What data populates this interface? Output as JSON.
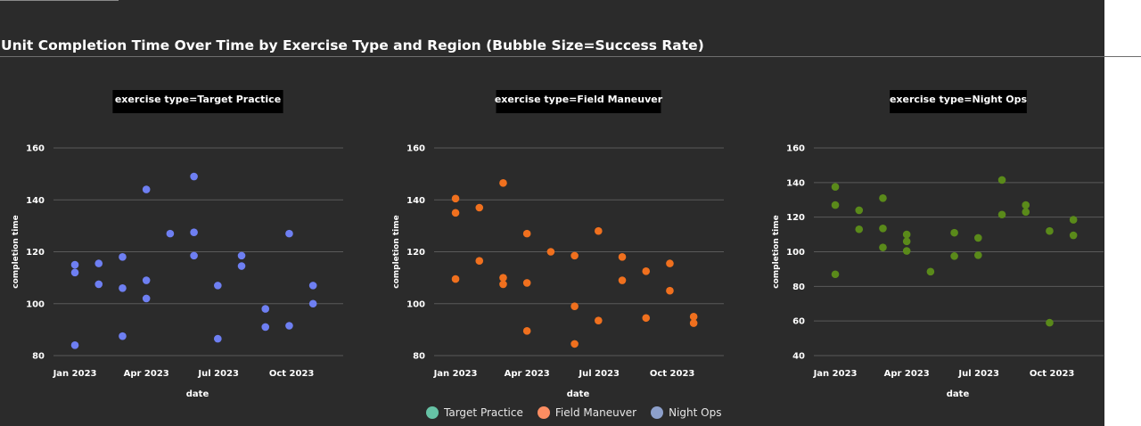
{
  "page": {
    "title": "Unit Completion Time Over Time by Exercise Type and Region (Bubble Size=Success Rate)"
  },
  "legend": [
    {
      "label": "Target Practice",
      "color": "#66c2a5"
    },
    {
      "label": "Field Maneuver",
      "color": "#fc8d62"
    },
    {
      "label": "Night Ops",
      "color": "#8da0cb"
    }
  ],
  "chart_data": [
    {
      "type": "scatter",
      "title": "exercise type=Target Practice",
      "xlabel": "date",
      "ylabel": "completion time",
      "xlim": [
        "2022-12-05",
        "2023-12-05"
      ],
      "ylim": [
        80,
        160
      ],
      "x_ticks": [
        {
          "date": "2023-01-01",
          "label": "Jan 2023"
        },
        {
          "date": "2023-04-01",
          "label": "Apr 2023"
        },
        {
          "date": "2023-07-01",
          "label": "Jul 2023"
        },
        {
          "date": "2023-10-01",
          "label": "Oct 2023"
        }
      ],
      "y_ticks": [
        80,
        100,
        120,
        140,
        160
      ],
      "grid": true,
      "color": "#6e7ff2",
      "points": [
        {
          "x": "2023-01-01",
          "y": 115
        },
        {
          "x": "2023-01-01",
          "y": 112
        },
        {
          "x": "2023-01-01",
          "y": 84
        },
        {
          "x": "2023-01-31",
          "y": 115.5
        },
        {
          "x": "2023-01-31",
          "y": 107.5
        },
        {
          "x": "2023-03-02",
          "y": 118
        },
        {
          "x": "2023-03-02",
          "y": 106
        },
        {
          "x": "2023-03-02",
          "y": 87.5
        },
        {
          "x": "2023-04-01",
          "y": 144
        },
        {
          "x": "2023-04-01",
          "y": 109
        },
        {
          "x": "2023-04-01",
          "y": 102
        },
        {
          "x": "2023-05-01",
          "y": 127
        },
        {
          "x": "2023-05-31",
          "y": 149
        },
        {
          "x": "2023-05-31",
          "y": 127.5
        },
        {
          "x": "2023-05-31",
          "y": 118.5
        },
        {
          "x": "2023-06-30",
          "y": 107
        },
        {
          "x": "2023-06-30",
          "y": 86.5
        },
        {
          "x": "2023-07-30",
          "y": 118.5
        },
        {
          "x": "2023-07-30",
          "y": 114.5
        },
        {
          "x": "2023-08-29",
          "y": 98
        },
        {
          "x": "2023-08-29",
          "y": 91
        },
        {
          "x": "2023-09-28",
          "y": 127
        },
        {
          "x": "2023-09-28",
          "y": 91.5
        },
        {
          "x": "2023-10-28",
          "y": 107
        },
        {
          "x": "2023-10-28",
          "y": 100
        }
      ]
    },
    {
      "type": "scatter",
      "title": "exercise type=Field Maneuver",
      "xlabel": "date",
      "ylabel": "completion time",
      "xlim": [
        "2022-12-05",
        "2023-12-05"
      ],
      "ylim": [
        80,
        160
      ],
      "x_ticks": [
        {
          "date": "2023-01-01",
          "label": "Jan 2023"
        },
        {
          "date": "2023-04-01",
          "label": "Apr 2023"
        },
        {
          "date": "2023-07-01",
          "label": "Jul 2023"
        },
        {
          "date": "2023-10-01",
          "label": "Oct 2023"
        }
      ],
      "y_ticks": [
        80,
        100,
        120,
        140,
        160
      ],
      "grid": true,
      "color": "#f0701e",
      "points": [
        {
          "x": "2023-01-01",
          "y": 140.5
        },
        {
          "x": "2023-01-01",
          "y": 135
        },
        {
          "x": "2023-01-01",
          "y": 109.5
        },
        {
          "x": "2023-01-31",
          "y": 137
        },
        {
          "x": "2023-01-31",
          "y": 116.5
        },
        {
          "x": "2023-03-02",
          "y": 146.5
        },
        {
          "x": "2023-03-02",
          "y": 110
        },
        {
          "x": "2023-03-02",
          "y": 107.5
        },
        {
          "x": "2023-04-01",
          "y": 127
        },
        {
          "x": "2023-04-01",
          "y": 108
        },
        {
          "x": "2023-04-01",
          "y": 89.5
        },
        {
          "x": "2023-05-01",
          "y": 120
        },
        {
          "x": "2023-05-31",
          "y": 118.5
        },
        {
          "x": "2023-05-31",
          "y": 99
        },
        {
          "x": "2023-05-31",
          "y": 84.5
        },
        {
          "x": "2023-06-30",
          "y": 128
        },
        {
          "x": "2023-06-30",
          "y": 93.5
        },
        {
          "x": "2023-07-30",
          "y": 118
        },
        {
          "x": "2023-07-30",
          "y": 109
        },
        {
          "x": "2023-08-29",
          "y": 112.5
        },
        {
          "x": "2023-08-29",
          "y": 94.5
        },
        {
          "x": "2023-09-28",
          "y": 115.5
        },
        {
          "x": "2023-09-28",
          "y": 105
        },
        {
          "x": "2023-10-28",
          "y": 95
        },
        {
          "x": "2023-10-28",
          "y": 92.5
        }
      ]
    },
    {
      "type": "scatter",
      "title": "exercise type=Night Ops",
      "xlabel": "date",
      "ylabel": "completion time",
      "xlim": [
        "2022-12-05",
        "2023-12-05"
      ],
      "ylim": [
        40,
        160
      ],
      "x_ticks": [
        {
          "date": "2023-01-01",
          "label": "Jan 2023"
        },
        {
          "date": "2023-04-01",
          "label": "Apr 2023"
        },
        {
          "date": "2023-07-01",
          "label": "Jul 2023"
        },
        {
          "date": "2023-10-01",
          "label": "Oct 2023"
        }
      ],
      "y_ticks": [
        40,
        60,
        80,
        100,
        120,
        140,
        160
      ],
      "grid": true,
      "color": "#5a8a1a",
      "points": [
        {
          "x": "2023-01-01",
          "y": 137.5
        },
        {
          "x": "2023-01-01",
          "y": 127
        },
        {
          "x": "2023-01-01",
          "y": 87
        },
        {
          "x": "2023-01-31",
          "y": 124
        },
        {
          "x": "2023-01-31",
          "y": 113
        },
        {
          "x": "2023-03-02",
          "y": 131
        },
        {
          "x": "2023-03-02",
          "y": 113.5
        },
        {
          "x": "2023-03-02",
          "y": 102.5
        },
        {
          "x": "2023-04-01",
          "y": 110
        },
        {
          "x": "2023-04-01",
          "y": 106
        },
        {
          "x": "2023-04-01",
          "y": 100.5
        },
        {
          "x": "2023-05-01",
          "y": 88.5
        },
        {
          "x": "2023-05-31",
          "y": 111
        },
        {
          "x": "2023-05-31",
          "y": 97.5
        },
        {
          "x": "2023-06-30",
          "y": 108
        },
        {
          "x": "2023-06-30",
          "y": 98
        },
        {
          "x": "2023-07-30",
          "y": 141.5
        },
        {
          "x": "2023-07-30",
          "y": 121.5
        },
        {
          "x": "2023-08-29",
          "y": 127
        },
        {
          "x": "2023-08-29",
          "y": 123
        },
        {
          "x": "2023-09-28",
          "y": 112
        },
        {
          "x": "2023-09-28",
          "y": 59
        },
        {
          "x": "2023-10-28",
          "y": 118.5
        },
        {
          "x": "2023-10-28",
          "y": 109.5
        }
      ]
    }
  ]
}
